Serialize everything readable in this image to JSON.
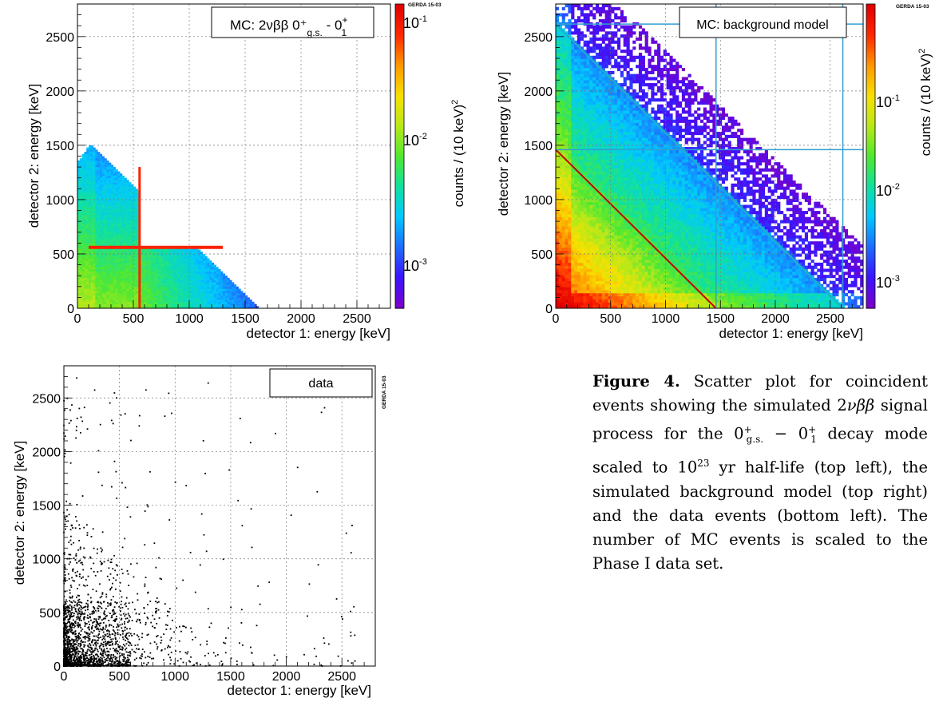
{
  "panels": {
    "top_left": {
      "legend": "MC: 2νββ 0⁺",
      "legend_sub": "g.s.",
      "legend_mid": " -   0",
      "legend_sup2": "+",
      "legend_sub2": "1",
      "stamp": "GERDA 15-03",
      "colorbar_label": "counts / (10 keV)",
      "colorbar_label_sup": "2",
      "colorbar_ticks": [
        {
          "base": "10",
          "exp": "-1"
        },
        {
          "base": "10",
          "exp": "-2"
        },
        {
          "base": "10",
          "exp": "-3"
        }
      ]
    },
    "top_right": {
      "legend": "MC: background model",
      "stamp": "GERDA 15-03",
      "colorbar_label": "counts / (10 keV)",
      "colorbar_label_sup": "2",
      "colorbar_ticks": [
        {
          "base": "10",
          "exp": "-1"
        },
        {
          "base": "10",
          "exp": "-2"
        },
        {
          "base": "10",
          "exp": "-3"
        }
      ]
    },
    "bottom_left": {
      "legend": "data",
      "stamp": "GERDA 15-03"
    }
  },
  "axes": {
    "xlabel_tl": "detector 1: energy [keV]",
    "ylabel_tl": "detector 2: energy [keV]",
    "xlabel_tr": "detector 1: energy  [keV]",
    "ylabel_tr": "detector 2: energy  [keV]",
    "xlabel_bl": "detector 1: energy [keV]",
    "ylabel_bl": "detector 2: energy [keV]",
    "ticks": [
      "0",
      "500",
      "1000",
      "1500",
      "2000",
      "2500"
    ],
    "yticks": [
      "0",
      "500",
      "1000",
      "1500",
      "2000",
      "2500"
    ]
  },
  "chart_data": [
    {
      "type": "heatmap",
      "panel": "top left",
      "xlabel": "detector 1: energy [keV]",
      "ylabel": "detector 2: energy [keV]",
      "xlim": [
        0,
        2800
      ],
      "ylim": [
        0,
        2800
      ],
      "zlabel": "counts / (10 keV)^2",
      "zscale": "log",
      "zrange": [
        0.0004,
        0.15
      ],
      "grid": true,
      "legend": "MC: 2νββ 0+ g.s. - 0+ 1",
      "legend_position": "top-right",
      "features": {
        "gamma_line_keV": 559,
        "endpoint_sum_keV": 1600
      }
    },
    {
      "type": "heatmap",
      "panel": "top right",
      "xlabel": "detector 1: energy  [keV]",
      "ylabel": "detector 2: energy  [keV]",
      "xlim": [
        0,
        2800
      ],
      "ylim": [
        0,
        2800
      ],
      "zlabel": "counts / (10 keV)^2",
      "zscale": "log",
      "zrange": [
        0.0005,
        0.4
      ],
      "grid": true,
      "legend": "MC: background model",
      "legend_position": "top-right",
      "features": {
        "sum_line_keV": 1460,
        "high_sum_line_keV": 2615,
        "vertical_lines_keV": [
          1460,
          2615
        ]
      }
    },
    {
      "type": "scatter",
      "panel": "bottom left",
      "xlabel": "detector 1: energy [keV]",
      "ylabel": "detector 2: energy [keV]",
      "xlim": [
        0,
        2800
      ],
      "ylim": [
        0,
        2800
      ],
      "grid": true,
      "legend": "data",
      "legend_position": "top-right"
    }
  ],
  "caption": {
    "label": "Figure 4.",
    "text_1": " Scatter plot for coincident events showing the simulated 2",
    "nu": "νββ",
    "text_2": " signal process for the 0",
    "gs_sup": "+",
    "gs_sub": "g.s.",
    "dash": " − 0",
    "one_sup": "+",
    "one_sub": "1",
    "text_3": " decay mode scaled to 10",
    "pow": "23",
    "text_4": " yr half-life (top left), the simulated background model (top right) and the data events (bottom left).  The number of MC events is scaled to the Phase I data set."
  },
  "colors": {
    "palette": [
      "#7a00c8",
      "#3a14ff",
      "#1e6cff",
      "#00c8ff",
      "#10e0a0",
      "#50e830",
      "#b8e818",
      "#f8e000",
      "#ff9a00",
      "#ff2a00",
      "#e00000"
    ]
  }
}
